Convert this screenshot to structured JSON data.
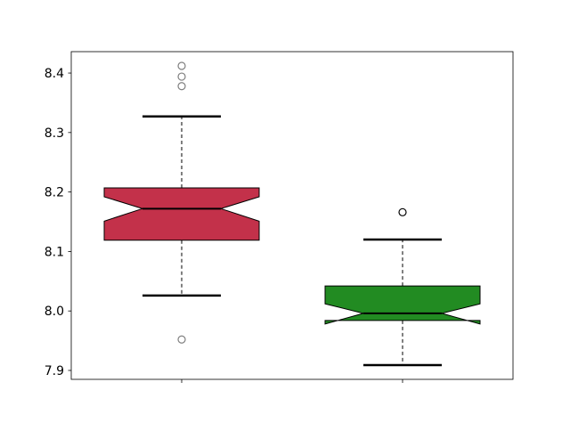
{
  "chart_data": {
    "type": "boxplot",
    "notched": true,
    "title": "",
    "xlabel": "",
    "ylabel": "",
    "ylim": [
      7.885,
      8.436
    ],
    "yticks": [
      "7.9",
      "8.0",
      "8.1",
      "8.2",
      "8.3",
      "8.4"
    ],
    "xticks": [
      "",
      ""
    ],
    "grid": false,
    "boxes": [
      {
        "color": "#c3314a",
        "whisker_low": 8.026,
        "q1": 8.119,
        "notch_low": 8.151,
        "median": 8.172,
        "notch_high": 8.192,
        "q3": 8.207,
        "whisker_high": 8.327,
        "outliers": [
          8.412,
          8.394,
          8.378,
          7.952
        ],
        "outlier_color": "#808080"
      },
      {
        "color": "#228b22",
        "whisker_low": 7.909,
        "q1": 7.984,
        "notch_low": 7.978,
        "median": 7.996,
        "notch_high": 8.012,
        "q3": 8.042,
        "whisker_high": 8.12,
        "outliers": [
          8.166
        ],
        "outlier_color": "#000000"
      }
    ]
  }
}
